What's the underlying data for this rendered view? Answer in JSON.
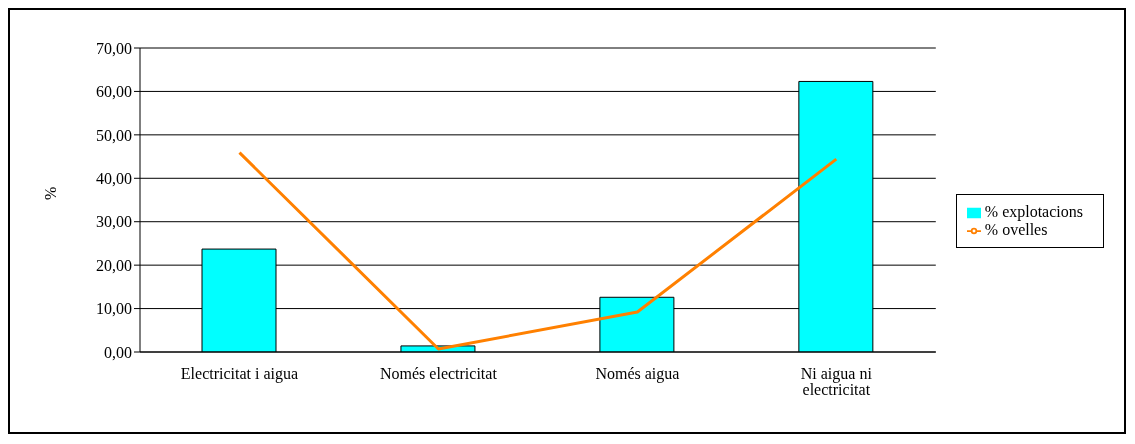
{
  "chart_data": {
    "type": "bar",
    "ylabel": "%",
    "categories": [
      "Electricitat i aigua",
      "Només electricitat",
      "Només aigua",
      "Ni aigua ni electricitat"
    ],
    "series": [
      {
        "name": "% explotacions",
        "color": "#00ffff",
        "values": [
          23.7,
          1.4,
          12.6,
          62.3
        ]
      },
      {
        "name": "% ovelles",
        "type": "line",
        "color": "#ff8000",
        "values": [
          45.9,
          0.7,
          9.2,
          44.4
        ]
      }
    ],
    "ylim": [
      0,
      70
    ],
    "yticks": [
      {
        "value": 0,
        "label": "0,00"
      },
      {
        "value": 10,
        "label": "10,00"
      },
      {
        "value": 20,
        "label": "20,00"
      },
      {
        "value": 30,
        "label": "30,00"
      },
      {
        "value": 40,
        "label": "40,00"
      },
      {
        "value": 50,
        "label": "50,00"
      },
      {
        "value": 60,
        "label": "60,00"
      },
      {
        "value": 70,
        "label": "70,00"
      }
    ],
    "grid": "y",
    "legend": "right",
    "marker": "none"
  }
}
